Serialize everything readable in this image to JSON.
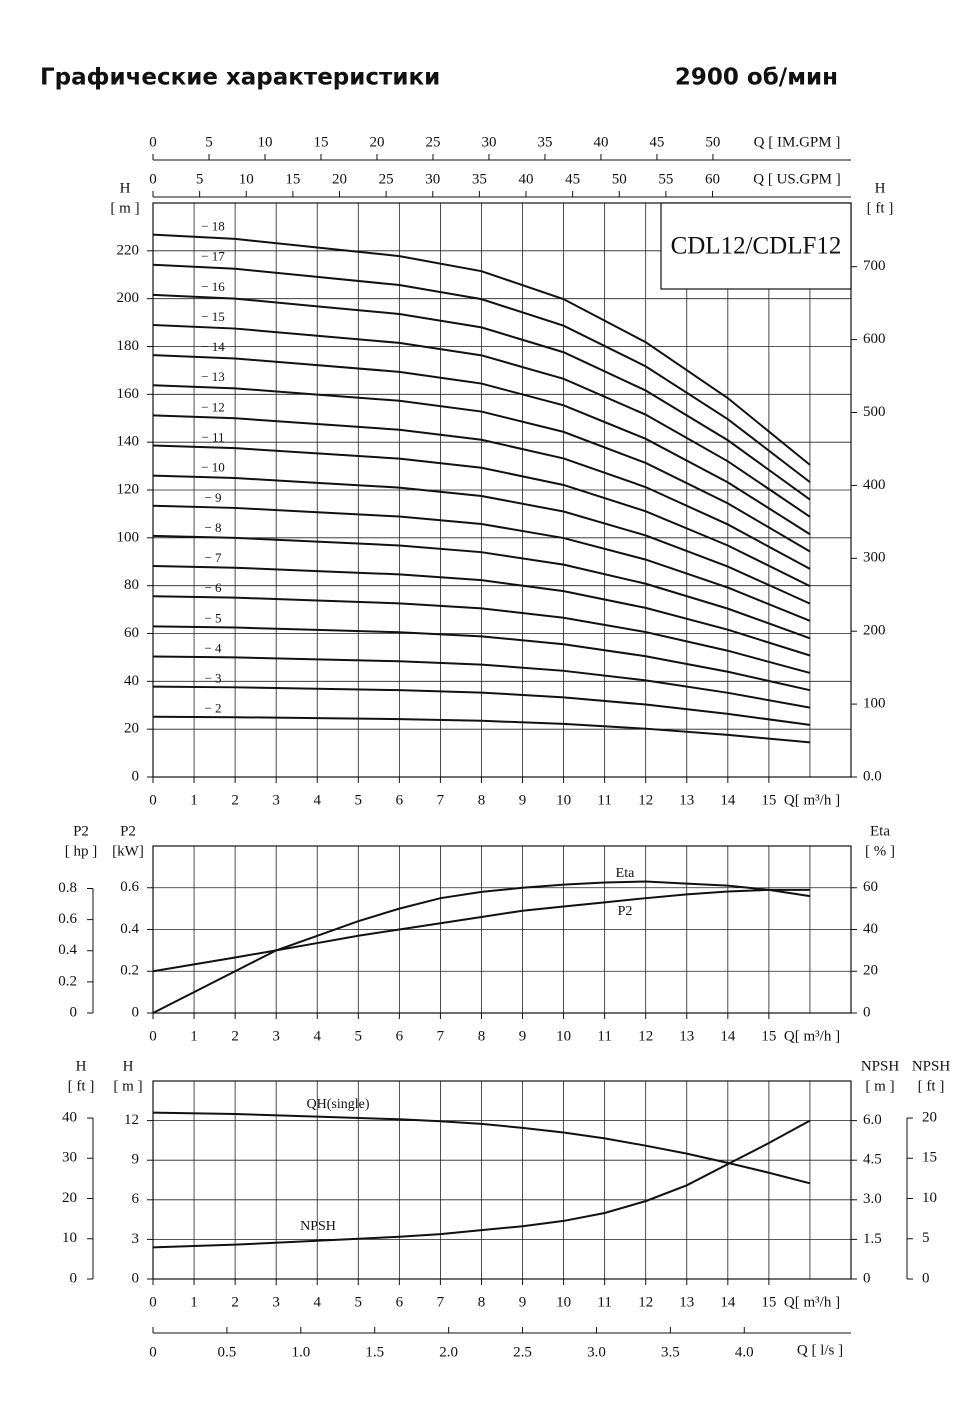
{
  "title": "Графические характеристики",
  "speed": "2900 об/мин",
  "chart_data": [
    {
      "type": "line",
      "model": "CDL12/CDLF12",
      "xlabel": "Q[ m³/h ]",
      "xlim": [
        0,
        17
      ],
      "xticks": [
        0,
        1,
        2,
        3,
        4,
        5,
        6,
        7,
        8,
        9,
        10,
        11,
        12,
        13,
        14,
        15
      ],
      "ytitle": "H",
      "yunit": "[ m ]",
      "ylim": [
        0,
        240
      ],
      "yticks": [
        0,
        20,
        40,
        60,
        80,
        100,
        120,
        140,
        160,
        180,
        200,
        220
      ],
      "y2title": "H",
      "y2unit": "[ ft ]",
      "y2lim": [
        0,
        787.4
      ],
      "y2ticks": [
        {
          "value": 0,
          "label": "0.0"
        },
        100,
        200,
        300,
        400,
        500,
        600,
        700
      ],
      "top_axes": [
        {
          "title": "Q [ IM.GPM ]",
          "lim": [
            0,
            62.33
          ],
          "ticks": [
            0,
            5,
            10,
            15,
            20,
            25,
            30,
            35,
            40,
            45,
            50
          ]
        },
        {
          "title": "Q [ US.GPM ]",
          "lim": [
            0,
            74.85
          ],
          "ticks": [
            0,
            5,
            10,
            15,
            20,
            25,
            30,
            35,
            40,
            45,
            50,
            55,
            60
          ]
        }
      ],
      "grid": true,
      "color": "#111111",
      "x": [
        0,
        2,
        4,
        6,
        8,
        10,
        12,
        14,
        16
      ],
      "series": [
        {
          "name": "− 2",
          "values": [
            25.2,
            25,
            24.6,
            24.2,
            23.5,
            22.2,
            20.2,
            17.6,
            14.5
          ]
        },
        {
          "name": "− 3",
          "values": [
            37.8,
            37.5,
            36.9,
            36.3,
            35.3,
            33.3,
            30.3,
            26.4,
            21.8
          ]
        },
        {
          "name": "− 4",
          "values": [
            50.4,
            50,
            49.2,
            48.4,
            47,
            44.4,
            40.4,
            35.2,
            29
          ]
        },
        {
          "name": "− 5",
          "values": [
            63,
            62.5,
            61.5,
            60.5,
            58.8,
            55.5,
            50.5,
            44,
            36.3
          ]
        },
        {
          "name": "− 6",
          "values": [
            75.6,
            75,
            73.8,
            72.6,
            70.5,
            66.6,
            60.6,
            52.8,
            43.5
          ]
        },
        {
          "name": "− 7",
          "values": [
            88.2,
            87.5,
            86.1,
            84.7,
            82.3,
            77.7,
            70.7,
            61.6,
            50.8
          ]
        },
        {
          "name": "− 8",
          "values": [
            100.8,
            100,
            98.4,
            96.8,
            94,
            88.8,
            80.8,
            70.4,
            58
          ]
        },
        {
          "name": "− 9",
          "values": [
            113.4,
            112.5,
            110.7,
            108.9,
            105.8,
            99.9,
            90.9,
            79.2,
            65.3
          ]
        },
        {
          "name": "− 10",
          "values": [
            126,
            125,
            123,
            121,
            117.5,
            111,
            101,
            88,
            72.5
          ]
        },
        {
          "name": "− 11",
          "values": [
            138.6,
            137.5,
            135.3,
            133.1,
            129.3,
            122.1,
            111.1,
            96.8,
            79.8
          ]
        },
        {
          "name": "− 12",
          "values": [
            151.2,
            150,
            147.6,
            145.2,
            141,
            133.2,
            121.2,
            105.6,
            87
          ]
        },
        {
          "name": "− 13",
          "values": [
            163.8,
            162.5,
            159.9,
            157.3,
            152.8,
            144.3,
            131.3,
            114.4,
            94.3
          ]
        },
        {
          "name": "− 14",
          "values": [
            176.4,
            175,
            172.2,
            169.4,
            164.5,
            155.4,
            141.4,
            123.2,
            101.5
          ]
        },
        {
          "name": "− 15",
          "values": [
            189,
            187.5,
            184.5,
            181.5,
            176.3,
            166.5,
            151.5,
            132,
            108.8
          ]
        },
        {
          "name": "− 16",
          "values": [
            201.6,
            200,
            196.8,
            193.6,
            188,
            177.6,
            161.6,
            140.8,
            116
          ]
        },
        {
          "name": "− 17",
          "values": [
            214.2,
            212.5,
            209.1,
            205.7,
            199.8,
            188.7,
            171.7,
            149.6,
            123.3
          ]
        },
        {
          "name": "− 18",
          "values": [
            226.8,
            225,
            221.4,
            217.8,
            211.5,
            199.8,
            181.8,
            158.4,
            130.5
          ]
        }
      ]
    },
    {
      "type": "line",
      "xlabel": "Q[ m³/h ]",
      "xlim": [
        0,
        17
      ],
      "xticks": [
        0,
        1,
        2,
        3,
        4,
        5,
        6,
        7,
        8,
        9,
        10,
        11,
        12,
        13,
        14,
        15
      ],
      "ytitle": "P2",
      "yunit": "[kW]",
      "ylim": [
        0,
        0.8
      ],
      "yticks": [
        0,
        0.2,
        0.4,
        0.6
      ],
      "y2title": "Eta",
      "y2unit": "[ % ]",
      "y2lim": [
        0,
        80
      ],
      "y2ticks": [
        0,
        20,
        40,
        60
      ],
      "extra_axes": [
        {
          "side": "left",
          "title": "P2",
          "unit": "[ hp ]",
          "lim": [
            0,
            1.073
          ],
          "ticks": [
            0,
            0.2,
            0.4,
            0.6,
            0.8
          ]
        }
      ],
      "grid": true,
      "color": "#111111",
      "x": [
        0,
        1,
        2,
        3,
        4,
        5,
        6,
        7,
        8,
        9,
        10,
        11,
        12,
        13,
        14,
        15,
        16
      ],
      "series": [
        {
          "name": "Eta",
          "axis": "y2",
          "values": [
            0,
            10,
            20,
            30,
            37,
            44,
            50,
            55,
            58,
            60,
            61.5,
            62.5,
            63,
            62,
            61,
            59,
            56
          ]
        },
        {
          "name": "P2",
          "axis": "y",
          "values": [
            0.2,
            0.233,
            0.266,
            0.3,
            0.335,
            0.37,
            0.4,
            0.43,
            0.46,
            0.49,
            0.51,
            0.53,
            0.55,
            0.568,
            0.582,
            0.59,
            0.59
          ]
        }
      ]
    },
    {
      "type": "line",
      "xlabel": "Q[ m³/h ]",
      "xlim": [
        0,
        17
      ],
      "xticks": [
        0,
        1,
        2,
        3,
        4,
        5,
        6,
        7,
        8,
        9,
        10,
        11,
        12,
        13,
        14,
        15
      ],
      "ytitle": "H",
      "yunit": "[ m ]",
      "ylim": [
        0,
        15
      ],
      "yticks": [
        0,
        3,
        6,
        9,
        12
      ],
      "y2title": "NPSH",
      "y2unit": "[ m ]",
      "y2lim": [
        0,
        7.5
      ],
      "y2ticks": [
        0,
        1.5,
        {
          "value": 3,
          "label": "3.0"
        },
        4.5,
        {
          "value": 6,
          "label": "6.0"
        }
      ],
      "extra_axes": [
        {
          "side": "left",
          "title": "H",
          "unit": "[ ft ]",
          "lim": [
            0,
            49.2
          ],
          "ticks": [
            0,
            10,
            20,
            30,
            40
          ]
        },
        {
          "side": "right",
          "title": "NPSH",
          "unit": "[ ft ]",
          "lim": [
            0,
            24.6
          ],
          "ticks": [
            0,
            5,
            10,
            15,
            20
          ]
        }
      ],
      "bottom_axis": {
        "title": "Q [ l/s ]",
        "lim": [
          0,
          4.722
        ],
        "ticks": [
          0,
          0.5,
          {
            "value": 1,
            "label": "1.0"
          },
          1.5,
          {
            "value": 2,
            "label": "2.0"
          },
          2.5,
          {
            "value": 3,
            "label": "3.0"
          },
          3.5,
          {
            "value": 4,
            "label": "4.0"
          }
        ]
      },
      "grid": true,
      "color": "#111111",
      "x": [
        0,
        2,
        4,
        6,
        7,
        8,
        9,
        10,
        11,
        12,
        13,
        14,
        15,
        16
      ],
      "series": [
        {
          "name": "QH(single)",
          "axis": "y",
          "values": [
            12.6,
            12.5,
            12.3,
            12.1,
            11.95,
            11.75,
            11.45,
            11.1,
            10.65,
            10.1,
            9.5,
            8.8,
            8.05,
            7.25
          ]
        },
        {
          "name": "NPSH",
          "axis": "y2",
          "values": [
            1.2,
            1.3,
            1.45,
            1.6,
            1.7,
            1.85,
            2.0,
            2.2,
            2.5,
            2.95,
            3.55,
            4.35,
            5.15,
            6.0
          ]
        }
      ]
    }
  ]
}
